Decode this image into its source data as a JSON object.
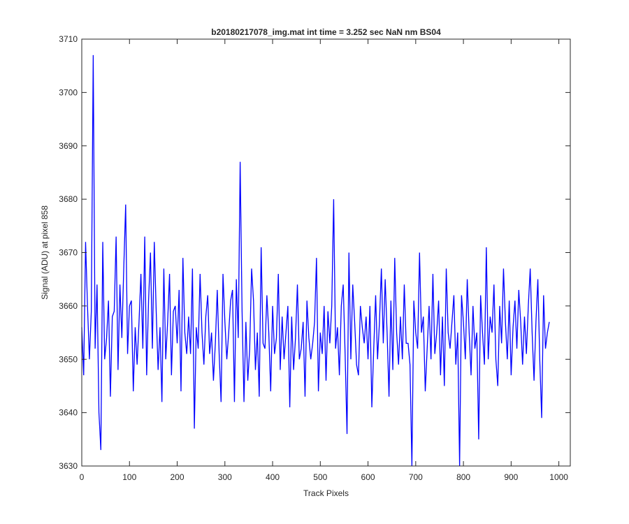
{
  "chart_data": {
    "type": "line",
    "title": "b20180217078_img.mat int time = 3.252 sec  NaN nm BS04",
    "xlabel": "Track Pixels",
    "ylabel": "Signal (ADU) at pixel 858",
    "xlim": [
      0,
      1024
    ],
    "ylim": [
      3630,
      3710
    ],
    "xticks": [
      0,
      100,
      200,
      300,
      400,
      500,
      600,
      700,
      800,
      900,
      1000
    ],
    "yticks": [
      3630,
      3640,
      3650,
      3660,
      3670,
      3680,
      3690,
      3700,
      3710
    ],
    "grid": false,
    "series": [
      {
        "color": "#0000ff",
        "x_start": 0,
        "x_step": 4,
        "values": [
          3656,
          3647,
          3672,
          3660,
          3650,
          3659,
          3707,
          3652,
          3664,
          3640,
          3633,
          3672,
          3650,
          3654,
          3661,
          3643,
          3658,
          3659,
          3673,
          3648,
          3664,
          3654,
          3667,
          3679,
          3651,
          3660,
          3661,
          3644,
          3656,
          3649,
          3657,
          3666,
          3652,
          3673,
          3647,
          3661,
          3670,
          3652,
          3672,
          3659,
          3648,
          3656,
          3642,
          3667,
          3650,
          3657,
          3666,
          3647,
          3659,
          3660,
          3653,
          3663,
          3644,
          3669,
          3655,
          3651,
          3658,
          3651,
          3667,
          3637,
          3656,
          3652,
          3666,
          3655,
          3649,
          3658,
          3662,
          3651,
          3655,
          3646,
          3653,
          3663,
          3651,
          3642,
          3666,
          3657,
          3650,
          3655,
          3661,
          3663,
          3642,
          3665,
          3654,
          3687,
          3659,
          3642,
          3657,
          3646,
          3652,
          3667,
          3661,
          3648,
          3655,
          3643,
          3671,
          3653,
          3652,
          3662,
          3655,
          3644,
          3660,
          3651,
          3654,
          3666,
          3648,
          3658,
          3650,
          3655,
          3660,
          3641,
          3658,
          3648,
          3654,
          3664,
          3650,
          3652,
          3657,
          3643,
          3661,
          3654,
          3650,
          3653,
          3657,
          3669,
          3644,
          3655,
          3651,
          3660,
          3646,
          3659,
          3653,
          3660,
          3680,
          3652,
          3656,
          3647,
          3660,
          3664,
          3651,
          3636,
          3670,
          3650,
          3664,
          3657,
          3649,
          3647,
          3660,
          3656,
          3653,
          3658,
          3650,
          3660,
          3641,
          3652,
          3662,
          3650,
          3657,
          3667,
          3653,
          3665,
          3655,
          3643,
          3661,
          3648,
          3669,
          3655,
          3649,
          3658,
          3650,
          3664,
          3653,
          3653,
          3649,
          3630,
          3661,
          3655,
          3652,
          3670,
          3655,
          3658,
          3644,
          3652,
          3660,
          3650,
          3666,
          3651,
          3655,
          3661,
          3647,
          3658,
          3645,
          3667,
          3655,
          3652,
          3657,
          3662,
          3649,
          3655,
          3630,
          3662,
          3657,
          3650,
          3665,
          3655,
          3647,
          3660,
          3652,
          3655,
          3635,
          3662,
          3655,
          3649,
          3671,
          3650,
          3658,
          3655,
          3664,
          3650,
          3645,
          3660,
          3653,
          3667,
          3657,
          3650,
          3661,
          3647,
          3656,
          3661,
          3652,
          3663,
          3657,
          3649,
          3658,
          3651,
          3660,
          3667,
          3655,
          3646,
          3657,
          3665,
          3650,
          3639,
          3662,
          3652,
          3655,
          3657
        ]
      }
    ]
  }
}
